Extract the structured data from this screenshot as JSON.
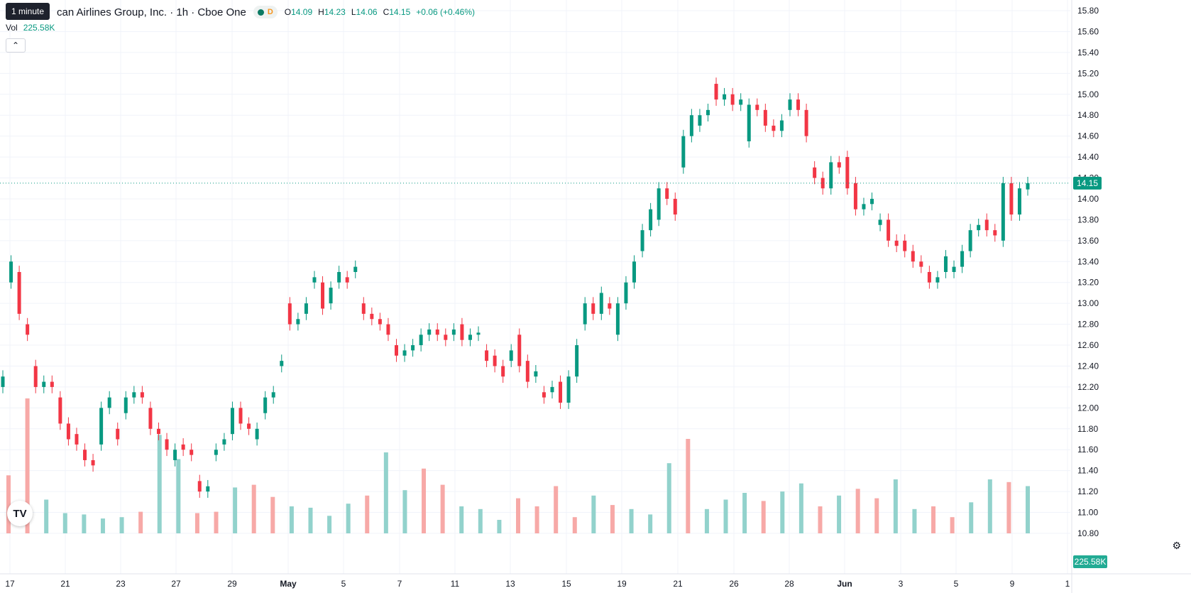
{
  "header": {
    "tooltip": "1 minute",
    "symbol_title": "can Airlines Group, Inc. · 1h · Cboe One",
    "status_badge": "D",
    "ohlc": {
      "o_label": "O",
      "o": "14.09",
      "h_label": "H",
      "h": "14.23",
      "l_label": "L",
      "l": "14.06",
      "c_label": "C",
      "c": "14.15",
      "change": "+0.06 (+0.46%)"
    },
    "volume_label": "Vol",
    "volume_value": "225.58K",
    "collapse_icon": "chevron-up-icon"
  },
  "colors": {
    "up": "#089981",
    "down": "#f23645",
    "vol_up": "#92d2cc",
    "vol_down": "#f7a9a7",
    "grid": "#f0f3fa",
    "price_line": "#089981"
  },
  "chart_data": {
    "type": "candlestick",
    "y_axis": {
      "ticks": [
        "15.80",
        "15.60",
        "15.40",
        "15.20",
        "15.00",
        "14.80",
        "14.60",
        "14.40",
        "14.20",
        "14.00",
        "13.80",
        "13.60",
        "13.40",
        "13.20",
        "13.00",
        "12.80",
        "12.60",
        "12.40",
        "12.20",
        "12.00",
        "11.80",
        "11.60",
        "11.40",
        "11.20",
        "11.00",
        "10.80"
      ],
      "range": [
        10.8,
        15.8
      ]
    },
    "x_axis": {
      "ticks": [
        "17",
        "21",
        "23",
        "27",
        "29",
        "May",
        "5",
        "7",
        "11",
        "13",
        "15",
        "19",
        "21",
        "26",
        "28",
        "Jun",
        "3",
        "5",
        "9",
        "1"
      ]
    },
    "last_price_label": "14.15",
    "volume_badge": "225.58K",
    "bars": [
      {
        "o": 12.2,
        "c": 12.3
      },
      {
        "o": 13.2,
        "c": 13.4
      },
      {
        "o": 13.3,
        "c": 12.9
      },
      {
        "o": 12.8,
        "c": 12.7
      },
      {
        "o": 12.4,
        "c": 12.2
      },
      {
        "o": 12.2,
        "c": 12.25
      },
      {
        "o": 12.25,
        "c": 12.2
      },
      {
        "o": 12.1,
        "c": 11.85
      },
      {
        "o": 11.85,
        "c": 11.7
      },
      {
        "o": 11.75,
        "c": 11.65
      },
      {
        "o": 11.6,
        "c": 11.5
      },
      {
        "o": 11.5,
        "c": 11.45
      },
      {
        "o": 11.65,
        "c": 12.0
      },
      {
        "o": 12.0,
        "c": 12.1
      },
      {
        "o": 11.8,
        "c": 11.7
      },
      {
        "o": 11.95,
        "c": 12.1
      },
      {
        "o": 12.1,
        "c": 12.15
      },
      {
        "o": 12.15,
        "c": 12.1
      },
      {
        "o": 12.0,
        "c": 11.8
      },
      {
        "o": 11.8,
        "c": 11.75
      },
      {
        "o": 11.7,
        "c": 11.6
      },
      {
        "o": 11.5,
        "c": 11.6
      },
      {
        "o": 11.65,
        "c": 11.6
      },
      {
        "o": 11.6,
        "c": 11.55
      },
      {
        "o": 11.3,
        "c": 11.2
      },
      {
        "o": 11.2,
        "c": 11.25
      },
      {
        "o": 11.55,
        "c": 11.6
      },
      {
        "o": 11.65,
        "c": 11.7
      },
      {
        "o": 11.75,
        "c": 12.0
      },
      {
        "o": 12.0,
        "c": 11.85
      },
      {
        "o": 11.85,
        "c": 11.8
      },
      {
        "o": 11.7,
        "c": 11.8
      },
      {
        "o": 11.95,
        "c": 12.1
      },
      {
        "o": 12.1,
        "c": 12.15
      },
      {
        "o": 12.4,
        "c": 12.45
      },
      {
        "o": 13.0,
        "c": 12.8
      },
      {
        "o": 12.8,
        "c": 12.85
      },
      {
        "o": 12.9,
        "c": 13.0
      },
      {
        "o": 13.2,
        "c": 13.25
      },
      {
        "o": 13.2,
        "c": 12.95
      },
      {
        "o": 13.0,
        "c": 13.15
      },
      {
        "o": 13.2,
        "c": 13.3
      },
      {
        "o": 13.25,
        "c": 13.2
      },
      {
        "o": 13.3,
        "c": 13.35
      },
      {
        "o": 13.0,
        "c": 12.9
      },
      {
        "o": 12.9,
        "c": 12.85
      },
      {
        "o": 12.85,
        "c": 12.8
      },
      {
        "o": 12.8,
        "c": 12.7
      },
      {
        "o": 12.6,
        "c": 12.5
      },
      {
        "o": 12.5,
        "c": 12.55
      },
      {
        "o": 12.55,
        "c": 12.6
      },
      {
        "o": 12.6,
        "c": 12.7
      },
      {
        "o": 12.7,
        "c": 12.75
      },
      {
        "o": 12.75,
        "c": 12.7
      },
      {
        "o": 12.7,
        "c": 12.65
      },
      {
        "o": 12.7,
        "c": 12.75
      },
      {
        "o": 12.8,
        "c": 12.65
      },
      {
        "o": 12.65,
        "c": 12.7
      },
      {
        "o": 12.7,
        "c": 12.72
      },
      {
        "o": 12.55,
        "c": 12.45
      },
      {
        "o": 12.5,
        "c": 12.4
      },
      {
        "o": 12.4,
        "c": 12.3
      },
      {
        "o": 12.45,
        "c": 12.55
      },
      {
        "o": 12.7,
        "c": 12.4
      },
      {
        "o": 12.45,
        "c": 12.25
      },
      {
        "o": 12.3,
        "c": 12.35
      },
      {
        "o": 12.15,
        "c": 12.1
      },
      {
        "o": 12.15,
        "c": 12.2
      },
      {
        "o": 12.25,
        "c": 12.05
      },
      {
        "o": 12.05,
        "c": 12.3
      },
      {
        "o": 12.3,
        "c": 12.6
      },
      {
        "o": 12.8,
        "c": 13.0
      },
      {
        "o": 13.0,
        "c": 12.9
      },
      {
        "o": 12.9,
        "c": 13.1
      },
      {
        "o": 13.0,
        "c": 12.95
      },
      {
        "o": 12.7,
        "c": 13.0
      },
      {
        "o": 13.0,
        "c": 13.2
      },
      {
        "o": 13.2,
        "c": 13.4
      },
      {
        "o": 13.5,
        "c": 13.7
      },
      {
        "o": 13.7,
        "c": 13.9
      },
      {
        "o": 13.8,
        "c": 14.1
      },
      {
        "o": 14.1,
        "c": 14.0
      },
      {
        "o": 14.0,
        "c": 13.85
      },
      {
        "o": 14.3,
        "c": 14.6
      },
      {
        "o": 14.6,
        "c": 14.8
      },
      {
        "o": 14.7,
        "c": 14.8
      },
      {
        "o": 14.8,
        "c": 14.85
      },
      {
        "o": 15.1,
        "c": 14.95
      },
      {
        "o": 14.95,
        "c": 15.0
      },
      {
        "o": 15.0,
        "c": 14.9
      },
      {
        "o": 14.9,
        "c": 14.95
      },
      {
        "o": 14.55,
        "c": 14.9
      },
      {
        "o": 14.9,
        "c": 14.85
      },
      {
        "o": 14.85,
        "c": 14.7
      },
      {
        "o": 14.7,
        "c": 14.65
      },
      {
        "o": 14.65,
        "c": 14.75
      },
      {
        "o": 14.85,
        "c": 14.95
      },
      {
        "o": 14.95,
        "c": 14.85
      },
      {
        "o": 14.85,
        "c": 14.6
      },
      {
        "o": 14.3,
        "c": 14.2
      },
      {
        "o": 14.2,
        "c": 14.1
      },
      {
        "o": 14.1,
        "c": 14.35
      },
      {
        "o": 14.35,
        "c": 14.3
      },
      {
        "o": 14.4,
        "c": 14.1
      },
      {
        "o": 14.15,
        "c": 13.9
      },
      {
        "o": 13.9,
        "c": 13.95
      },
      {
        "o": 13.95,
        "c": 14.0
      },
      {
        "o": 13.75,
        "c": 13.8
      },
      {
        "o": 13.8,
        "c": 13.6
      },
      {
        "o": 13.6,
        "c": 13.55
      },
      {
        "o": 13.6,
        "c": 13.5
      },
      {
        "o": 13.5,
        "c": 13.4
      },
      {
        "o": 13.4,
        "c": 13.35
      },
      {
        "o": 13.3,
        "c": 13.2
      },
      {
        "o": 13.2,
        "c": 13.25
      },
      {
        "o": 13.3,
        "c": 13.45
      },
      {
        "o": 13.3,
        "c": 13.35
      },
      {
        "o": 13.35,
        "c": 13.5
      },
      {
        "o": 13.5,
        "c": 13.7
      },
      {
        "o": 13.7,
        "c": 13.75
      },
      {
        "o": 13.8,
        "c": 13.7
      },
      {
        "o": 13.7,
        "c": 13.65
      },
      {
        "o": 13.6,
        "c": 14.15
      },
      {
        "o": 14.15,
        "c": 13.85
      },
      {
        "o": 13.85,
        "c": 14.1
      },
      {
        "o": 14.09,
        "c": 14.15
      }
    ],
    "volume": [
      [
        0.43,
        0
      ],
      [
        1,
        0
      ],
      [
        0.25,
        1
      ],
      [
        0.15,
        1
      ],
      [
        0.14,
        1
      ],
      [
        0.11,
        1
      ],
      [
        0.12,
        1
      ],
      [
        0.16,
        0
      ],
      [
        0.73,
        1
      ],
      [
        0.55,
        1
      ],
      [
        0.15,
        0
      ],
      [
        0.16,
        0
      ],
      [
        0.34,
        1
      ],
      [
        0.36,
        0
      ],
      [
        0.27,
        0
      ],
      [
        0.2,
        1
      ],
      [
        0.19,
        1
      ],
      [
        0.13,
        1
      ],
      [
        0.22,
        1
      ],
      [
        0.28,
        0
      ],
      [
        0.6,
        1
      ],
      [
        0.32,
        1
      ],
      [
        0.48,
        0
      ],
      [
        0.36,
        0
      ],
      [
        0.2,
        1
      ],
      [
        0.18,
        1
      ],
      [
        0.1,
        1
      ],
      [
        0.26,
        0
      ],
      [
        0.2,
        0
      ],
      [
        0.35,
        0
      ],
      [
        0.12,
        0
      ],
      [
        0.28,
        1
      ],
      [
        0.21,
        0
      ],
      [
        0.18,
        1
      ],
      [
        0.14,
        1
      ],
      [
        0.52,
        1
      ],
      [
        0.7,
        0
      ],
      [
        0.18,
        1
      ],
      [
        0.25,
        1
      ],
      [
        0.3,
        1
      ],
      [
        0.24,
        0
      ],
      [
        0.31,
        1
      ],
      [
        0.37,
        1
      ],
      [
        0.2,
        0
      ],
      [
        0.28,
        1
      ],
      [
        0.33,
        0
      ],
      [
        0.26,
        0
      ],
      [
        0.4,
        1
      ],
      [
        0.18,
        1
      ],
      [
        0.2,
        0
      ],
      [
        0.12,
        0
      ],
      [
        0.23,
        1
      ],
      [
        0.4,
        1
      ],
      [
        0.38,
        0
      ],
      [
        0.35,
        1
      ]
    ]
  },
  "footer": {
    "logo_label": "TV",
    "settings_icon": "gear-icon"
  }
}
